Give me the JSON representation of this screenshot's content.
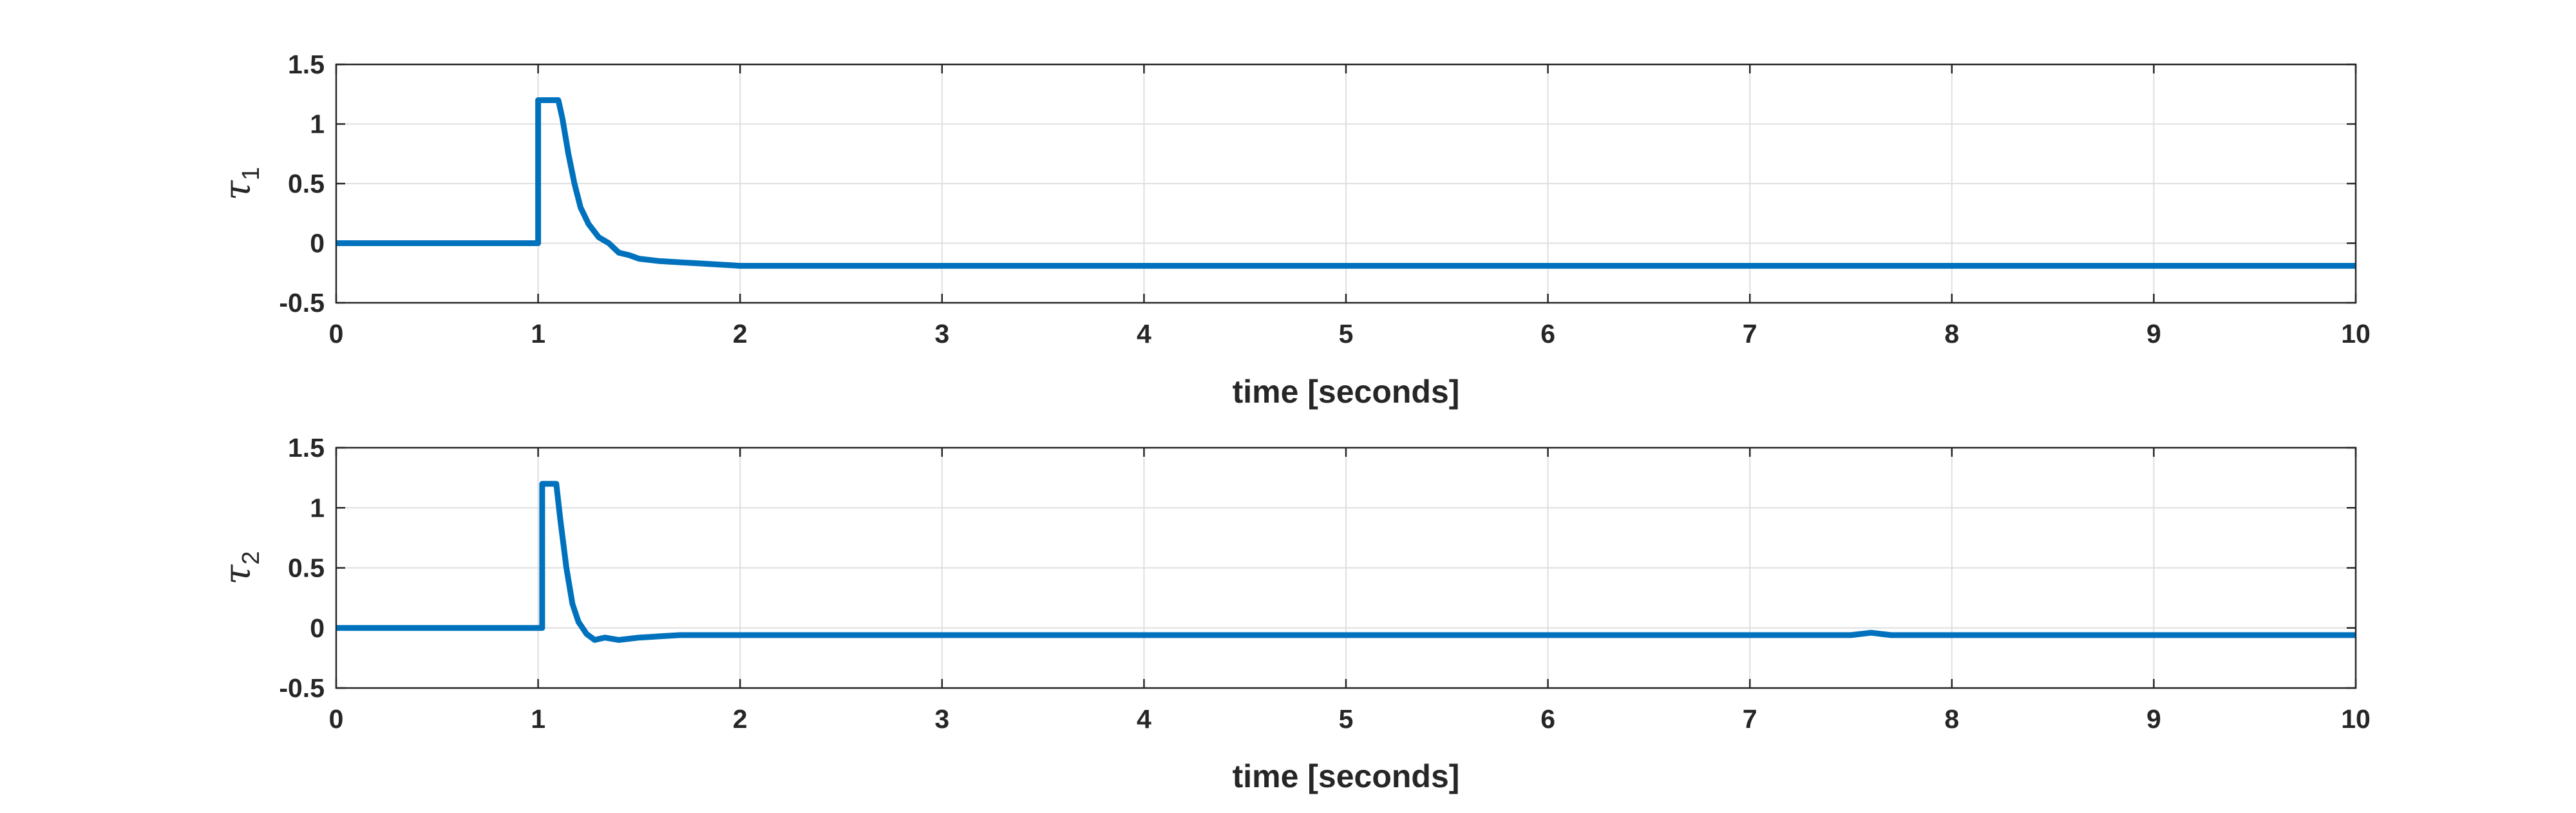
{
  "chart_data": [
    {
      "type": "line",
      "xlabel": "time [seconds]",
      "ylabel": {
        "symbol": "τ",
        "subscript": "1"
      },
      "xlim": [
        0,
        10
      ],
      "ylim": [
        -0.5,
        1.5
      ],
      "xticks": [
        "0",
        "1",
        "2",
        "3",
        "4",
        "5",
        "6",
        "7",
        "8",
        "9",
        "10"
      ],
      "yticks": [
        "1.5",
        "1",
        "0.5",
        "0",
        "-0.5"
      ],
      "grid": true,
      "color": "#0072BD",
      "series": [
        {
          "x": [
            0,
            0.99,
            1.0,
            1.0,
            1.1,
            1.12,
            1.15,
            1.18,
            1.21,
            1.25,
            1.3,
            1.35,
            1.4,
            1.45,
            1.5,
            1.6,
            1.7,
            1.8,
            1.9,
            2.0,
            10
          ],
          "y": [
            0,
            0,
            0,
            1.2,
            1.2,
            1.05,
            0.75,
            0.5,
            0.3,
            0.16,
            0.05,
            0.0,
            -0.08,
            -0.1,
            -0.13,
            -0.15,
            -0.16,
            -0.17,
            -0.18,
            -0.19,
            -0.19
          ]
        }
      ]
    },
    {
      "type": "line",
      "xlabel": "time [seconds]",
      "ylabel": {
        "symbol": "τ",
        "subscript": "2"
      },
      "xlim": [
        0,
        10
      ],
      "ylim": [
        -0.5,
        1.5
      ],
      "xticks": [
        "0",
        "1",
        "2",
        "3",
        "4",
        "5",
        "6",
        "7",
        "8",
        "9",
        "10"
      ],
      "yticks": [
        "1.5",
        "1",
        "0.5",
        "0",
        "-0.5"
      ],
      "grid": true,
      "color": "#0072BD",
      "series": [
        {
          "x": [
            0,
            1.0,
            1.02,
            1.02,
            1.09,
            1.11,
            1.14,
            1.17,
            1.2,
            1.24,
            1.28,
            1.33,
            1.4,
            1.5,
            1.6,
            1.7,
            2.0,
            7.5,
            7.6,
            7.7,
            10
          ],
          "y": [
            0,
            0,
            0,
            1.2,
            1.2,
            0.9,
            0.5,
            0.2,
            0.05,
            -0.05,
            -0.1,
            -0.08,
            -0.1,
            -0.08,
            -0.07,
            -0.06,
            -0.06,
            -0.06,
            -0.04,
            -0.06,
            -0.06
          ]
        }
      ]
    }
  ]
}
